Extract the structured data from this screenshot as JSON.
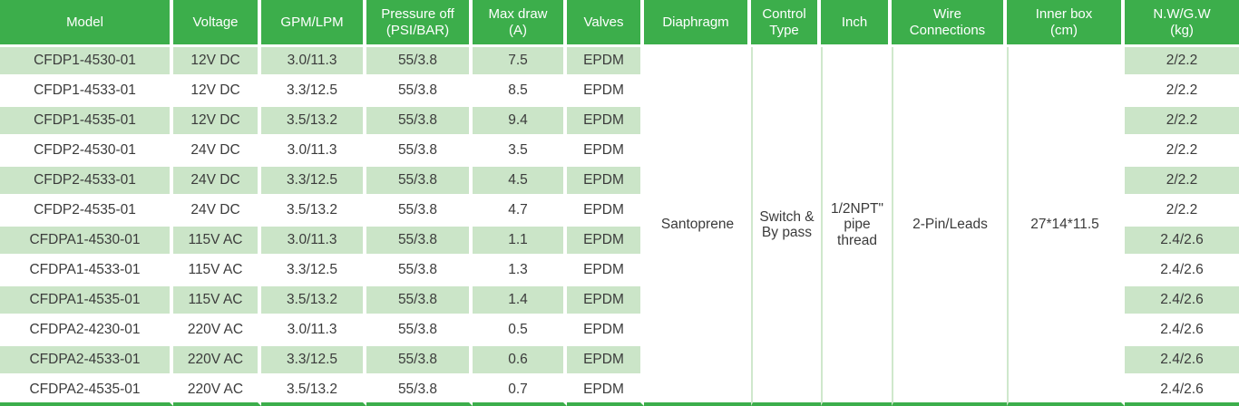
{
  "colors": {
    "header_green": "#3cae4b",
    "row_band_green": "#cbe5c8",
    "separator_green": "#cfe8cc",
    "body_text": "#3b3b3b"
  },
  "table": {
    "columns": [
      "Model",
      "Voltage",
      "GPM/LPM",
      "Pressure off\n(PSI/BAR)",
      "Max draw\n(A)",
      "Valves",
      "Diaphragm",
      "Control\nType",
      "Inch",
      "Wire\nConnections",
      "Inner box\n(cm)",
      "N.W/G.W\n(kg)"
    ],
    "merged": {
      "diaphragm": "Santoprene",
      "control_type": "Switch &\nBy pass",
      "inch": "1/2NPT\"\npipe\nthread",
      "wire_connections": "2-Pin/Leads",
      "inner_box": "27*14*11.5"
    },
    "rows": [
      {
        "model": "CFDP1-4530-01",
        "voltage": "12V DC",
        "gpm_lpm": "3.0/11.3",
        "pressure_off": "55/3.8",
        "max_draw": "7.5",
        "valves": "EPDM",
        "nw_gw": "2/2.2"
      },
      {
        "model": "CFDP1-4533-01",
        "voltage": "12V DC",
        "gpm_lpm": "3.3/12.5",
        "pressure_off": "55/3.8",
        "max_draw": "8.5",
        "valves": "EPDM",
        "nw_gw": "2/2.2"
      },
      {
        "model": "CFDP1-4535-01",
        "voltage": "12V DC",
        "gpm_lpm": "3.5/13.2",
        "pressure_off": "55/3.8",
        "max_draw": "9.4",
        "valves": "EPDM",
        "nw_gw": "2/2.2"
      },
      {
        "model": "CFDP2-4530-01",
        "voltage": "24V DC",
        "gpm_lpm": "3.0/11.3",
        "pressure_off": "55/3.8",
        "max_draw": "3.5",
        "valves": "EPDM",
        "nw_gw": "2/2.2"
      },
      {
        "model": "CFDP2-4533-01",
        "voltage": "24V DC",
        "gpm_lpm": "3.3/12.5",
        "pressure_off": "55/3.8",
        "max_draw": "4.5",
        "valves": "EPDM",
        "nw_gw": "2/2.2"
      },
      {
        "model": "CFDP2-4535-01",
        "voltage": "24V DC",
        "gpm_lpm": "3.5/13.2",
        "pressure_off": "55/3.8",
        "max_draw": "4.7",
        "valves": "EPDM",
        "nw_gw": "2/2.2"
      },
      {
        "model": "CFDPA1-4530-01",
        "voltage": "115V AC",
        "gpm_lpm": "3.0/11.3",
        "pressure_off": "55/3.8",
        "max_draw": "1.1",
        "valves": "EPDM",
        "nw_gw": "2.4/2.6"
      },
      {
        "model": "CFDPA1-4533-01",
        "voltage": "115V AC",
        "gpm_lpm": "3.3/12.5",
        "pressure_off": "55/3.8",
        "max_draw": "1.3",
        "valves": "EPDM",
        "nw_gw": "2.4/2.6"
      },
      {
        "model": "CFDPA1-4535-01",
        "voltage": "115V AC",
        "gpm_lpm": "3.5/13.2",
        "pressure_off": "55/3.8",
        "max_draw": "1.4",
        "valves": "EPDM",
        "nw_gw": "2.4/2.6"
      },
      {
        "model": "CFDPA2-4230-01",
        "voltage": "220V AC",
        "gpm_lpm": "3.0/11.3",
        "pressure_off": "55/3.8",
        "max_draw": "0.5",
        "valves": "EPDM",
        "nw_gw": "2.4/2.6"
      },
      {
        "model": "CFDPA2-4533-01",
        "voltage": "220V AC",
        "gpm_lpm": "3.3/12.5",
        "pressure_off": "55/3.8",
        "max_draw": "0.6",
        "valves": "EPDM",
        "nw_gw": "2.4/2.6"
      },
      {
        "model": "CFDPA2-4535-01",
        "voltage": "220V AC",
        "gpm_lpm": "3.5/13.2",
        "pressure_off": "55/3.8",
        "max_draw": "0.7",
        "valves": "EPDM",
        "nw_gw": "2.4/2.6"
      }
    ]
  }
}
